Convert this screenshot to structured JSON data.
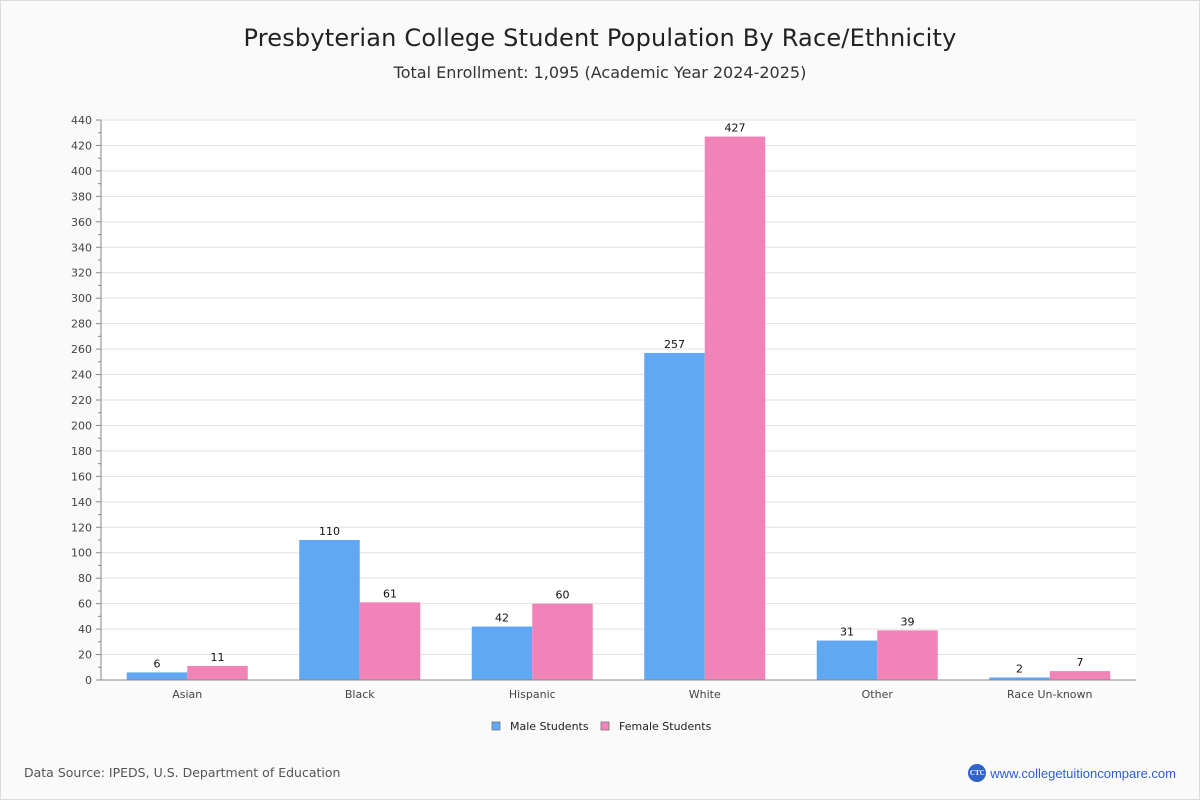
{
  "chart_data": {
    "type": "bar",
    "title": "Presbyterian College Student Population By Race/Ethnicity",
    "subtitle": "Total Enrollment: 1,095 (Academic Year 2024-2025)",
    "xlabel": "",
    "ylabel": "",
    "categories": [
      "Asian",
      "Black",
      "Hispanic",
      "White",
      "Other",
      "Race Un-known"
    ],
    "series": [
      {
        "name": "Male Students",
        "color": "#60a8f2",
        "values": [
          6,
          110,
          42,
          257,
          31,
          2
        ]
      },
      {
        "name": "Female Students",
        "color": "#f283b9",
        "values": [
          11,
          61,
          60,
          427,
          39,
          7
        ]
      }
    ],
    "ylim": [
      0,
      440
    ],
    "yticks": [
      0,
      20,
      40,
      60,
      80,
      100,
      120,
      140,
      160,
      180,
      200,
      220,
      240,
      260,
      280,
      300,
      320,
      340,
      360,
      380,
      400,
      420,
      440
    ],
    "grid": true,
    "legend": "bottom-center"
  },
  "footer": {
    "source": "Data Source: IPEDS, U.S. Department of Education",
    "logo_text": "CTC",
    "website": "www.collegetuitioncompare.com"
  }
}
